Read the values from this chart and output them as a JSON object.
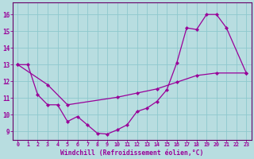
{
  "xlabel": "Windchill (Refroidissement éolien,°C)",
  "bg_color": "#b8dde0",
  "line_color": "#990099",
  "grid_color": "#8ec8ce",
  "spine_color": "#660066",
  "xlim": [
    -0.5,
    23.5
  ],
  "ylim": [
    8.5,
    16.7
  ],
  "yticks": [
    9,
    10,
    11,
    12,
    13,
    14,
    15,
    16
  ],
  "xticks": [
    0,
    1,
    2,
    3,
    4,
    5,
    6,
    7,
    8,
    9,
    10,
    11,
    12,
    13,
    14,
    15,
    16,
    17,
    18,
    19,
    20,
    21,
    22,
    23
  ],
  "curve1_x": [
    0,
    1,
    2,
    3,
    4,
    5,
    6,
    7,
    8,
    9,
    10,
    11,
    12,
    13,
    14,
    15,
    16,
    17,
    18,
    19,
    20,
    21,
    23
  ],
  "curve1_y": [
    13.0,
    13.0,
    11.2,
    10.6,
    10.6,
    9.6,
    9.9,
    9.4,
    8.9,
    8.85,
    9.1,
    9.4,
    10.2,
    10.4,
    10.8,
    11.5,
    13.1,
    15.2,
    15.1,
    16.0,
    16.0,
    15.2,
    12.5
  ],
  "curve2_x": [
    0,
    3,
    5,
    10,
    12,
    14,
    16,
    18,
    20,
    23
  ],
  "curve2_y": [
    13.0,
    11.8,
    10.6,
    11.05,
    11.3,
    11.55,
    11.95,
    12.35,
    12.5,
    12.5
  ]
}
